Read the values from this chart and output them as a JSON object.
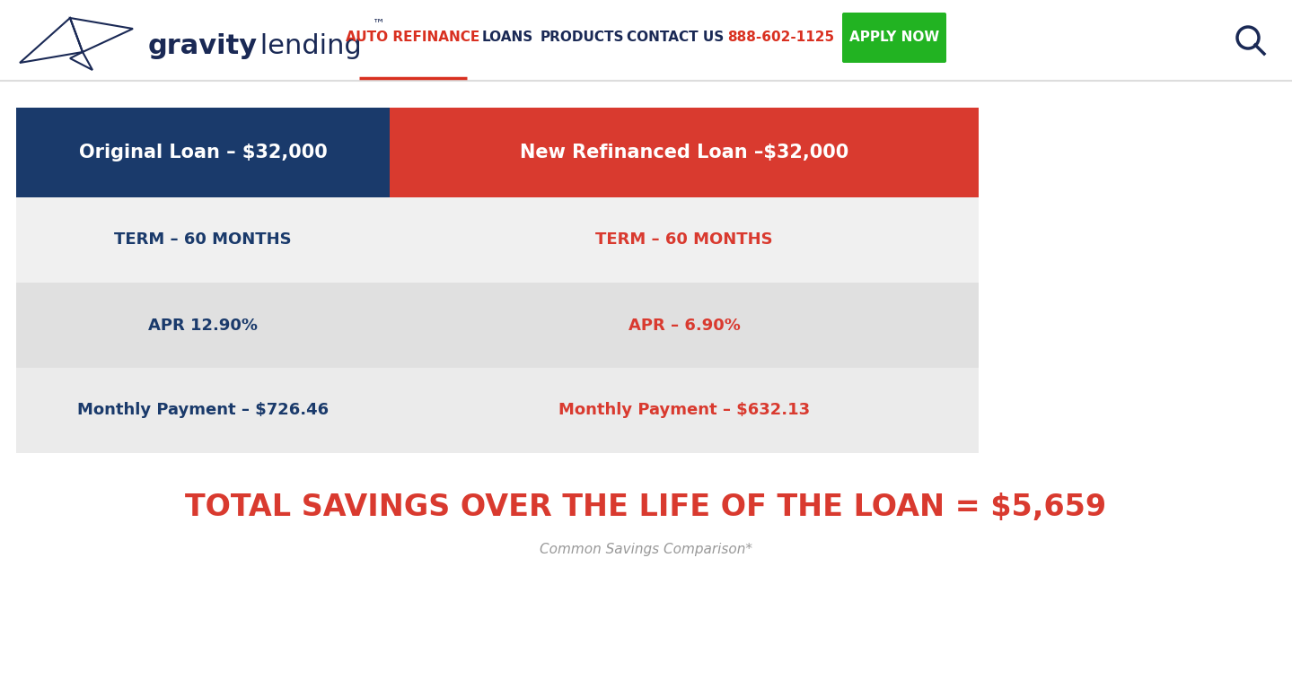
{
  "bg_color": "#ffffff",
  "nav_border_color": "#dddddd",
  "nav_auto_refinance_color": "#d93020",
  "nav_loans_color": "#1a2955",
  "nav_products_color": "#1a2955",
  "nav_contact_color": "#1a2955",
  "nav_phone_color": "#d93020",
  "nav_apply_bg": "#22b322",
  "nav_apply_color": "#ffffff",
  "logo_dark": "#1a2955",
  "header_left_bg": "#1a3a6b",
  "header_right_bg": "#d93a2f",
  "header_left_text": "Original Loan – $32,000",
  "header_right_text": "New Refinanced Loan –$32,000",
  "header_text_color": "#ffffff",
  "row1_bg": "#f0f0f0",
  "row2_bg": "#e0e0e0",
  "row3_bg": "#ebebeb",
  "row_left_color": "#1a3a6b",
  "row_right_color": "#d93a2f",
  "row1_left": "TERM – 60 MONTHS",
  "row1_right": "TERM – 60 MONTHS",
  "row2_left": "APR 12.90%",
  "row2_right": "APR – 6.90%",
  "row3_left": "Monthly Payment – $726.46",
  "row3_right": "Monthly Payment – $632.13",
  "savings_text": "TOTAL SAVINGS OVER THE LIFE OF THE LOAN = $5,659",
  "savings_color": "#d93a2f",
  "savings_fontsize": 24,
  "footnote_text": "Common Savings Comparison*",
  "footnote_color": "#999999",
  "col_split": 0.388
}
